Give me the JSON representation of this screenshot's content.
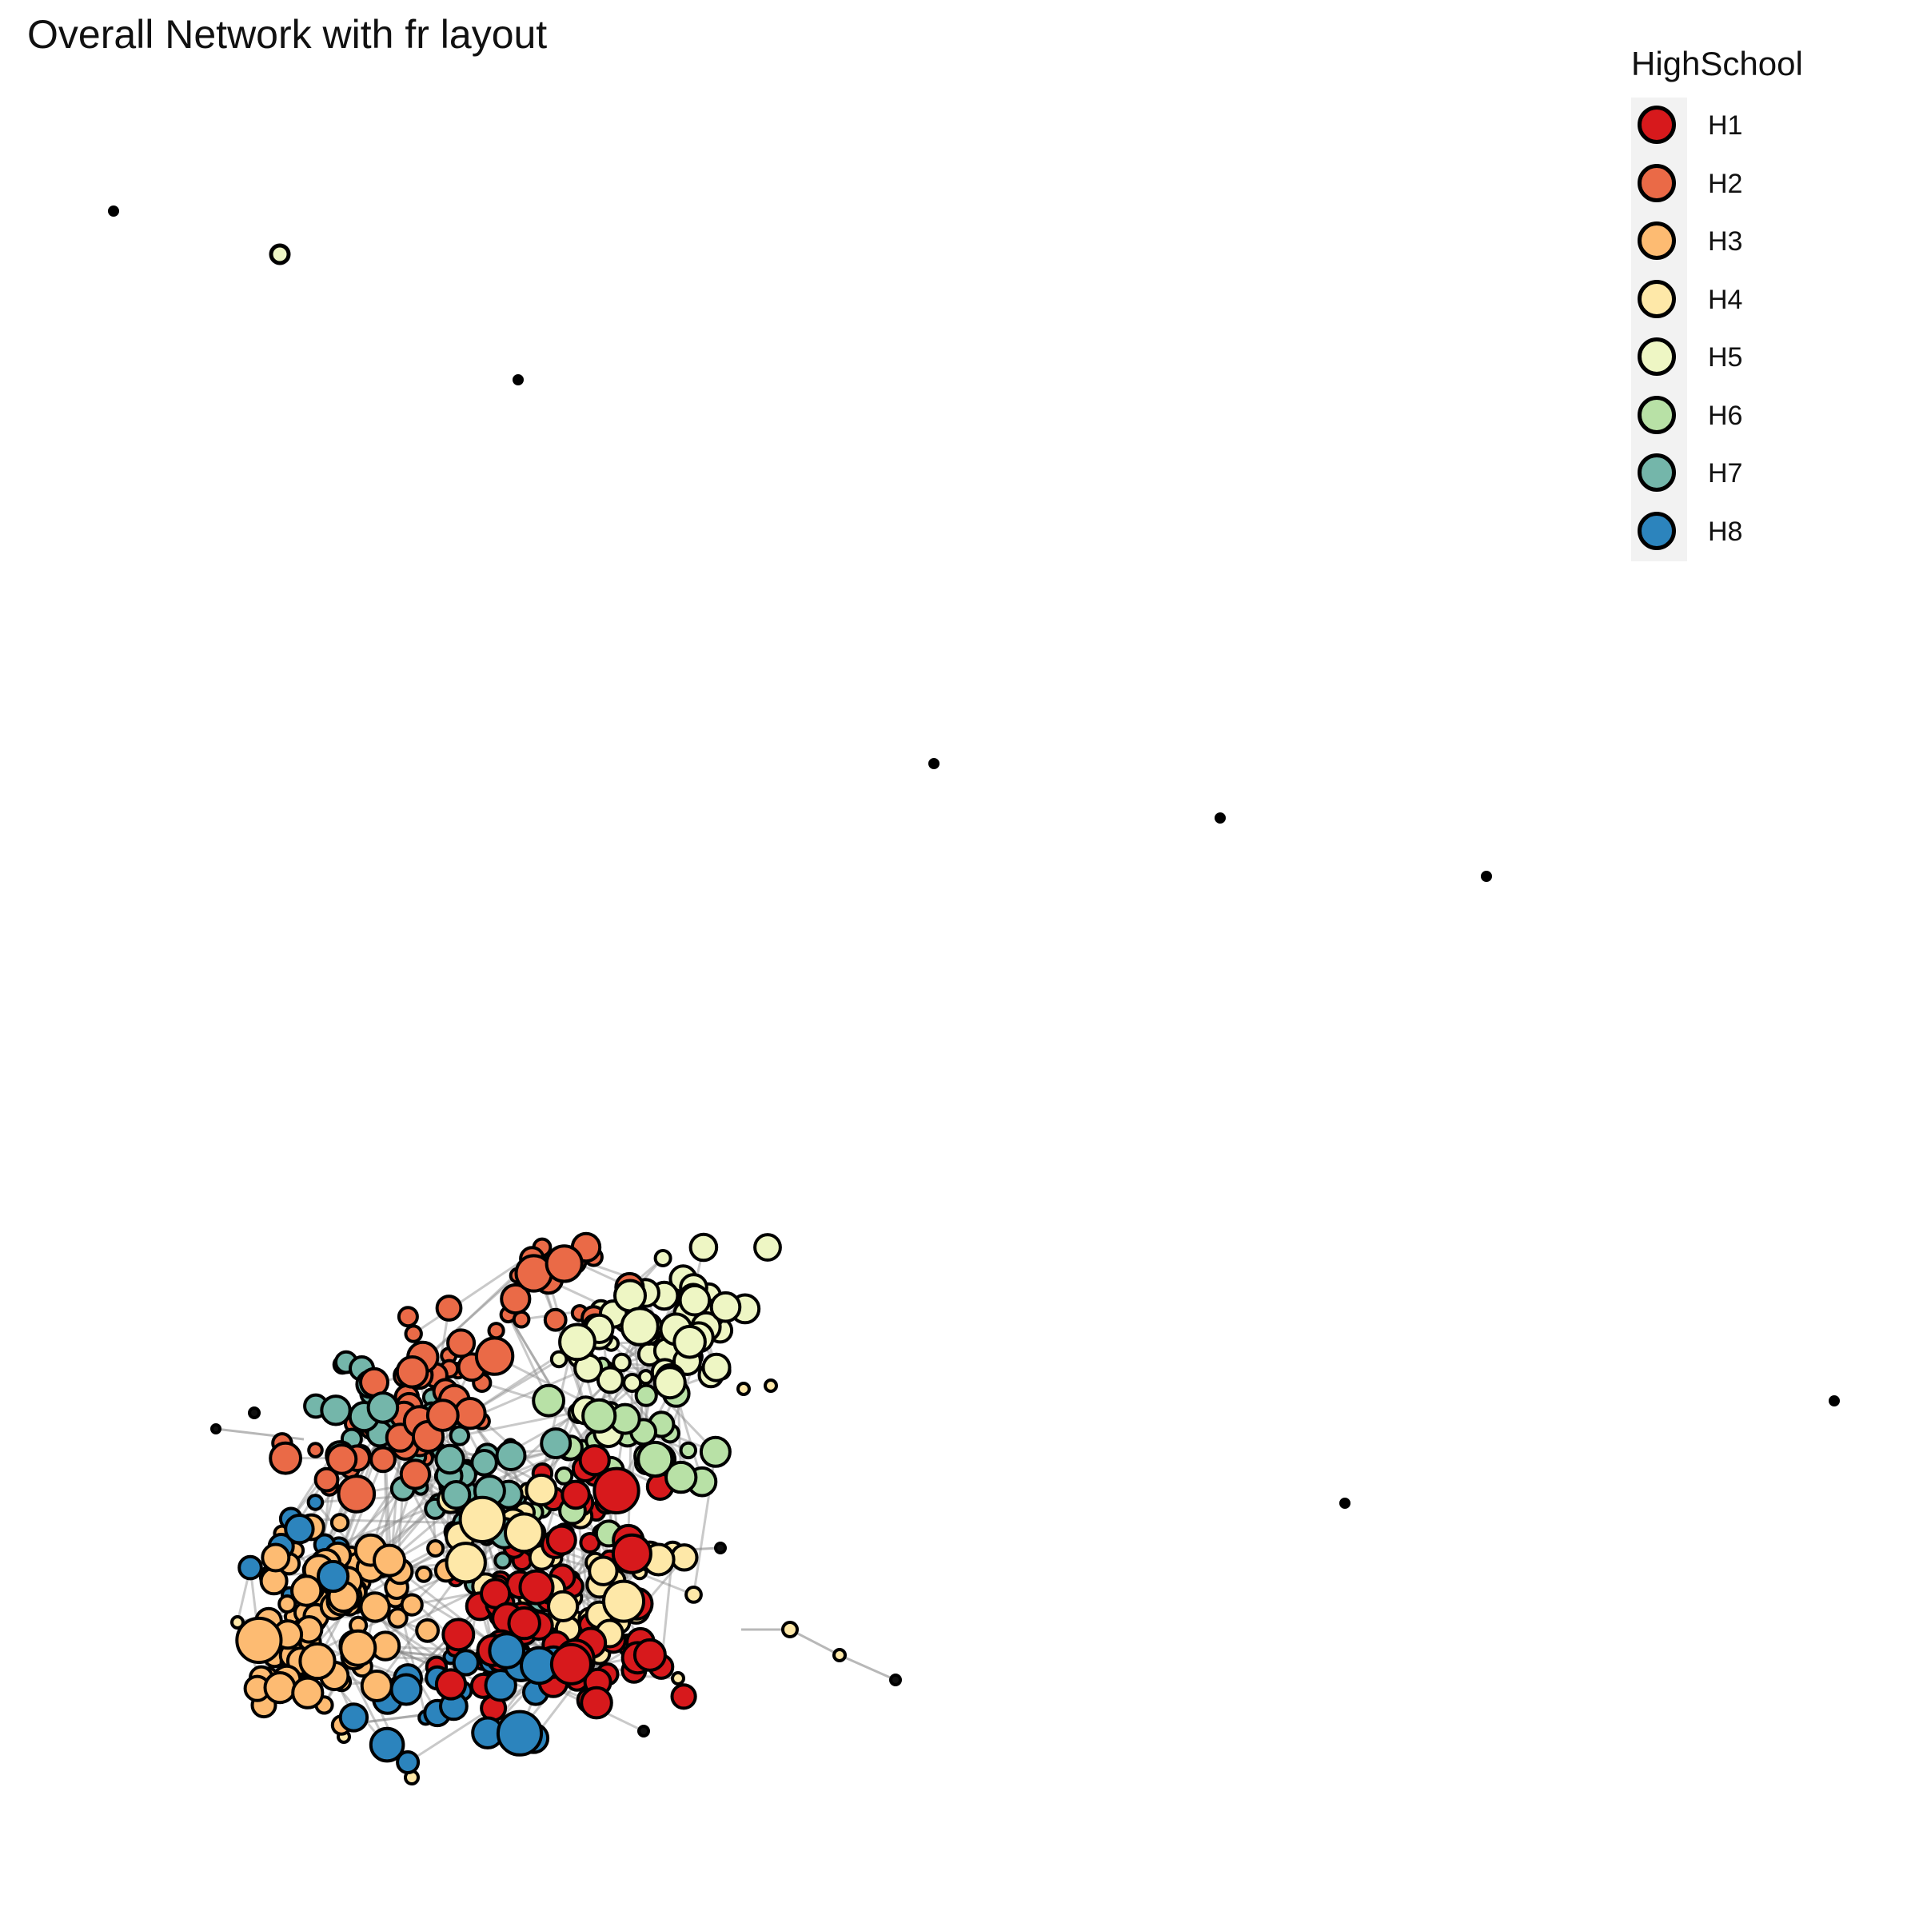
{
  "title": "Overall Network with fr layout",
  "legend": {
    "title": "HighSchool",
    "items": [
      {
        "label": "H1",
        "color": "#d7191c"
      },
      {
        "label": "H2",
        "color": "#ea6a47"
      },
      {
        "label": "H3",
        "color": "#fdbb72"
      },
      {
        "label": "H4",
        "color": "#fee8a8"
      },
      {
        "label": "H5",
        "color": "#eef6c4"
      },
      {
        "label": "H6",
        "color": "#b8e1a6"
      },
      {
        "label": "H7",
        "color": "#74b6aa"
      },
      {
        "label": "H8",
        "color": "#2c84bd"
      }
    ]
  },
  "edge_color": "#888888"
}
